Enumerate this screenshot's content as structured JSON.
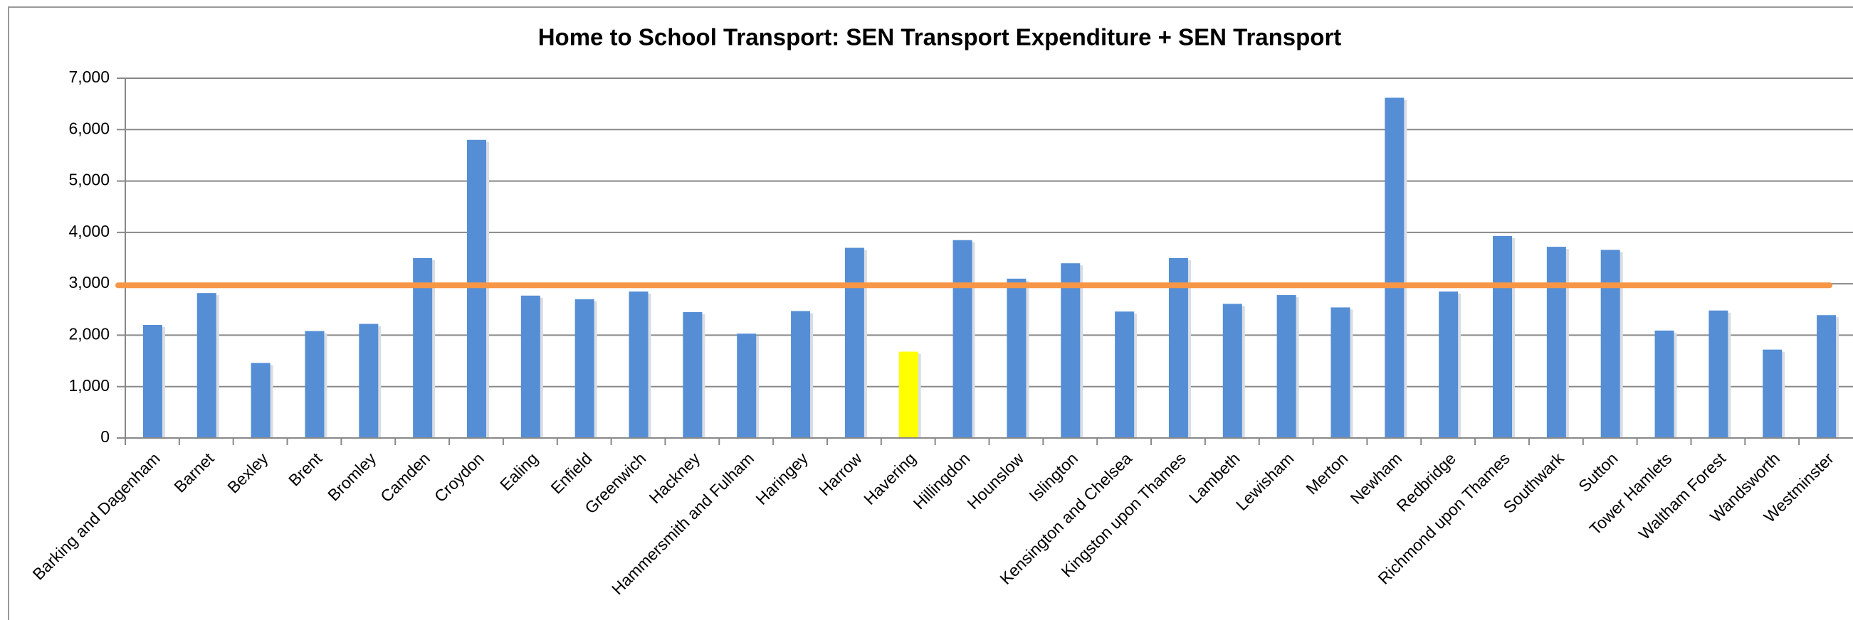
{
  "chart_data": {
    "type": "bar",
    "title": "Home to School Transport: SEN Transport Expenditure + SEN Transport",
    "categories": [
      "Barking and Dagenham",
      "Barnet",
      "Bexley",
      "Brent",
      "Bromley",
      "Camden",
      "Croydon",
      "Ealing",
      "Enfield",
      "Greenwich",
      "Hackney",
      "Hammersmith and Fulham",
      "Haringey",
      "Harrow",
      "Havering",
      "Hillingdon",
      "Hounslow",
      "Islington",
      "Kensington and Chelsea",
      "Kingston upon Thames",
      "Lambeth",
      "Lewisham",
      "Merton",
      "Newham",
      "Redbridge",
      "Richmond upon Thames",
      "Southwark",
      "Sutton",
      "Tower Hamlets",
      "Waltham Forest",
      "Wandsworth",
      "Westminster"
    ],
    "values": [
      2200,
      2820,
      1460,
      2080,
      2220,
      3500,
      5800,
      2770,
      2700,
      2850,
      2450,
      2030,
      2470,
      3700,
      1680,
      3850,
      3100,
      3400,
      2460,
      3500,
      2610,
      2780,
      2540,
      6620,
      2850,
      3930,
      3720,
      3660,
      2090,
      2480,
      1720,
      2390
    ],
    "colors": [
      "#558ed5",
      "#558ed5",
      "#558ed5",
      "#558ed5",
      "#558ed5",
      "#558ed5",
      "#558ed5",
      "#558ed5",
      "#558ed5",
      "#558ed5",
      "#558ed5",
      "#558ed5",
      "#558ed5",
      "#558ed5",
      "#ffff00",
      "#558ed5",
      "#558ed5",
      "#558ed5",
      "#558ed5",
      "#558ed5",
      "#558ed5",
      "#558ed5",
      "#558ed5",
      "#558ed5",
      "#558ed5",
      "#558ed5",
      "#558ed5",
      "#558ed5",
      "#558ed5",
      "#558ed5",
      "#558ed5",
      "#558ed5"
    ],
    "reference_line": {
      "value": 2970,
      "color": "#f79646"
    },
    "ylim": [
      0,
      7000
    ],
    "yticks": [
      0,
      {
        "value": 1000,
        "label": "1,000"
      },
      {
        "value": 2000,
        "label": "2,000"
      },
      {
        "value": 3000,
        "label": "3,000"
      },
      {
        "value": 4000,
        "label": "4,000"
      },
      {
        "value": 5000,
        "label": "5,000"
      },
      {
        "value": 6000,
        "label": "6,000"
      },
      {
        "value": 7000,
        "label": "7,000"
      }
    ],
    "grid": true
  }
}
